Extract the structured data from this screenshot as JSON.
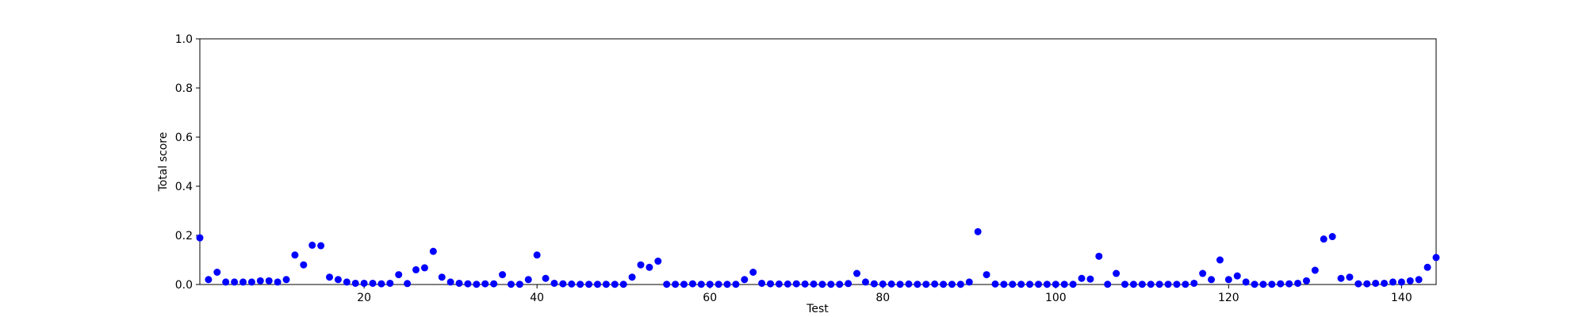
{
  "chart_data": {
    "type": "scatter",
    "xlabel": "Test",
    "ylabel": "Total score",
    "xlim": [
      1,
      144
    ],
    "ylim": [
      0,
      1
    ],
    "xticks": [
      20,
      40,
      60,
      80,
      100,
      120,
      140
    ],
    "yticks": [
      0.0,
      0.2,
      0.4,
      0.6,
      0.8,
      1.0
    ],
    "xtick_labels": [
      "20",
      "40",
      "60",
      "80",
      "100",
      "120",
      "140"
    ],
    "ytick_labels": [
      "0.0",
      "0.2",
      "0.4",
      "0.6",
      "0.8",
      "1.0"
    ],
    "grid": false,
    "marker_color": "#0000ff",
    "series": [
      {
        "x": [
          1,
          2,
          3,
          4,
          5,
          6,
          7,
          8,
          9,
          10,
          11,
          12,
          13,
          14,
          15,
          16,
          17,
          18,
          19,
          20,
          21,
          22,
          23,
          24,
          25,
          26,
          27,
          28,
          29,
          30,
          31,
          32,
          33,
          34,
          35,
          36,
          37,
          38,
          39,
          40,
          41,
          42,
          43,
          44,
          45,
          46,
          47,
          48,
          49,
          50,
          51,
          52,
          53,
          54,
          55,
          56,
          57,
          58,
          59,
          60,
          61,
          62,
          63,
          64,
          65,
          66,
          67,
          68,
          69,
          70,
          71,
          72,
          73,
          74,
          75,
          76,
          77,
          78,
          79,
          80,
          81,
          82,
          83,
          84,
          85,
          86,
          87,
          88,
          89,
          90,
          91,
          92,
          93,
          94,
          95,
          96,
          97,
          98,
          99,
          100,
          101,
          102,
          103,
          104,
          105,
          106,
          107,
          108,
          109,
          110,
          111,
          112,
          113,
          114,
          115,
          116,
          117,
          118,
          119,
          120,
          121,
          122,
          123,
          124,
          125,
          126,
          127,
          128,
          129,
          130,
          131,
          132,
          133,
          134,
          135,
          136,
          137,
          138,
          139,
          140,
          141,
          142,
          143,
          144
        ],
        "y": [
          0.19,
          0.02,
          0.05,
          0.01,
          0.01,
          0.01,
          0.01,
          0.015,
          0.015,
          0.01,
          0.02,
          0.12,
          0.08,
          0.16,
          0.158,
          0.03,
          0.02,
          0.01,
          0.005,
          0.005,
          0.005,
          0.003,
          0.005,
          0.04,
          0.004,
          0.06,
          0.068,
          0.135,
          0.03,
          0.01,
          0.005,
          0.003,
          0.001,
          0.003,
          0.003,
          0.04,
          0.001,
          0.001,
          0.02,
          0.12,
          0.025,
          0.005,
          0.003,
          0.002,
          0.001,
          0.001,
          0.001,
          0.001,
          0.001,
          0.001,
          0.03,
          0.08,
          0.07,
          0.095,
          0.001,
          0.001,
          0.001,
          0.003,
          0.001,
          0.001,
          0.001,
          0.001,
          0.001,
          0.02,
          0.05,
          0.005,
          0.003,
          0.002,
          0.002,
          0.003,
          0.002,
          0.002,
          0.001,
          0.001,
          0.001,
          0.004,
          0.045,
          0.01,
          0.003,
          0.002,
          0.002,
          0.001,
          0.002,
          0.001,
          0.001,
          0.002,
          0.001,
          0.001,
          0.001,
          0.01,
          0.215,
          0.04,
          0.002,
          0.001,
          0.001,
          0.001,
          0.001,
          0.001,
          0.001,
          0.001,
          0.001,
          0.001,
          0.025,
          0.022,
          0.115,
          0.001,
          0.045,
          0.001,
          0.001,
          0.001,
          0.001,
          0.001,
          0.001,
          0.001,
          0.001,
          0.005,
          0.045,
          0.02,
          0.1,
          0.02,
          0.035,
          0.01,
          0.001,
          0.001,
          0.001,
          0.003,
          0.003,
          0.005,
          0.015,
          0.058,
          0.185,
          0.195,
          0.025,
          0.03,
          0.003,
          0.003,
          0.005,
          0.005,
          0.01,
          0.01,
          0.015,
          0.02,
          0.07,
          0.11
        ]
      }
    ]
  }
}
